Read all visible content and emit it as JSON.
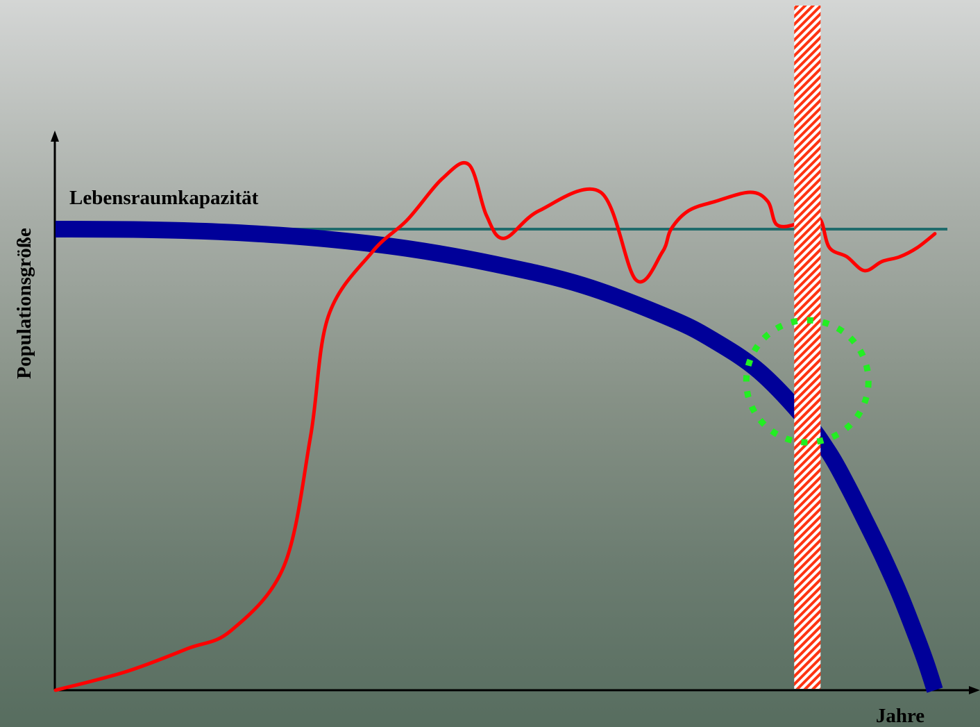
{
  "chart_data": {
    "type": "line",
    "title": "",
    "xlabel": "Jahre",
    "ylabel": "Populationsgröße",
    "annotations": {
      "capacity_label": "Lebensraumkapazität"
    },
    "grid": false,
    "series": [
      {
        "name": "",
        "role": "capacity",
        "color": "#1f6b6b",
        "x": [
          0,
          100
        ],
        "y": [
          100,
          100
        ]
      },
      {
        "name": "",
        "role": "population",
        "color": "#ff0000",
        "x": [
          0,
          8,
          15,
          20,
          26,
          29,
          31,
          36,
          40,
          44,
          47,
          49,
          51,
          55,
          62,
          66,
          69,
          70,
          72,
          75,
          79,
          81,
          82,
          84,
          85.5,
          87,
          88,
          90,
          92,
          94,
          96,
          98,
          100
        ],
        "y": [
          0,
          4,
          9,
          13,
          27,
          55,
          81,
          95,
          102,
          111,
          114,
          103,
          98,
          104,
          108,
          89,
          95,
          100,
          104,
          106,
          108,
          106,
          101,
          101,
          103,
          102,
          96,
          94,
          91,
          93,
          94,
          96,
          99
        ]
      },
      {
        "name": "",
        "role": "declining-curve",
        "color": "#000099",
        "x": [
          0,
          10,
          20,
          30,
          40,
          50,
          60,
          70,
          75,
          80,
          85,
          88,
          90,
          92,
          94,
          96,
          98,
          99,
          100
        ],
        "y": [
          100,
          99.9,
          99.3,
          98.0,
          95.8,
          92.4,
          87.8,
          80.6,
          75.7,
          69.2,
          59.3,
          51.4,
          44.6,
          37.1,
          29.3,
          20.8,
          11.1,
          5.9,
          0
        ]
      }
    ],
    "highlight": {
      "hatched_band_x": [
        84,
        87
      ],
      "circle_center": [
        85.5,
        67
      ],
      "colors": {
        "band": "#ff3311",
        "circle": "#22ee22"
      }
    }
  }
}
